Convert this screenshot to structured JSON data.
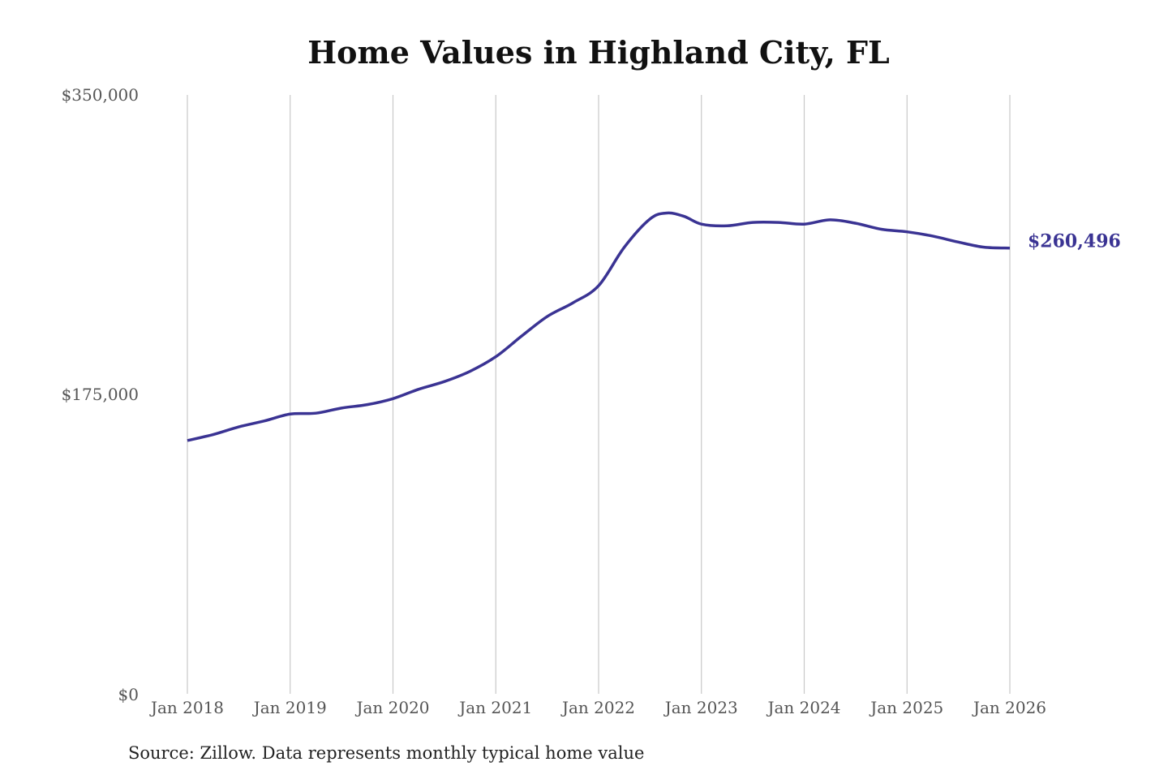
{
  "chart_data": {
    "type": "line",
    "title": "Home Values in Highland City, FL",
    "source": "Source: Zillow. Data represents monthly typical home value",
    "xlabel": "",
    "ylabel": "",
    "ylim": [
      0,
      350000
    ],
    "yticks": [
      0,
      175000,
      350000
    ],
    "ytick_labels": [
      "$0",
      "$175,000",
      "$350,000"
    ],
    "xticks": [
      "2018-01",
      "2019-01",
      "2020-01",
      "2021-01",
      "2022-01",
      "2023-01",
      "2024-01",
      "2025-01",
      "2026-01"
    ],
    "xtick_labels": [
      "Jan 2018",
      "Jan 2019",
      "Jan 2020",
      "Jan 2021",
      "Jan 2022",
      "Jan 2023",
      "Jan 2024",
      "Jan 2025",
      "Jan 2026"
    ],
    "grid": "vertical",
    "line_color": "#3a3393",
    "end_label": "$260,496",
    "series": [
      {
        "x": [
          "2018-01",
          "2018-04",
          "2018-07",
          "2018-10",
          "2019-01",
          "2019-04",
          "2019-07",
          "2019-10",
          "2020-01",
          "2020-04",
          "2020-07",
          "2020-10",
          "2021-01",
          "2021-04",
          "2021-07",
          "2021-10",
          "2022-01",
          "2022-04",
          "2022-07",
          "2022-09",
          "2022-11",
          "2023-01",
          "2023-04",
          "2023-07",
          "2023-10",
          "2024-01",
          "2024-04",
          "2024-07",
          "2024-10",
          "2025-01",
          "2025-04",
          "2025-07",
          "2025-10",
          "2026-01"
        ],
        "y": [
          148000,
          151500,
          156000,
          159500,
          163500,
          164000,
          167000,
          169000,
          172500,
          178000,
          182500,
          188500,
          197000,
          209000,
          220500,
          228500,
          238500,
          261000,
          277500,
          281000,
          279000,
          274500,
          273500,
          275500,
          275500,
          274500,
          277000,
          275000,
          271500,
          270000,
          267500,
          264000,
          261000,
          260496
        ]
      }
    ]
  }
}
